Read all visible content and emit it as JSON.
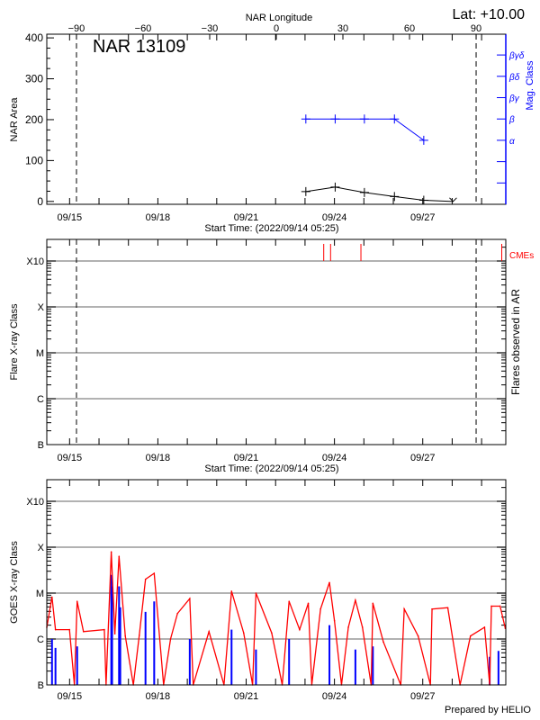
{
  "footer": "Prepared by HELIO",
  "colors": {
    "area": "#000000",
    "mag_class": "#0000ff",
    "cme": "#ff0000",
    "goes_long": "#ff0000",
    "goes_short": "#0000ff",
    "grid": "#999999"
  },
  "chart_data": [
    {
      "type": "line",
      "panel": "nar",
      "annotation": "NAR 13109",
      "latitude_label": "Lat: +10.00",
      "xlabel": "Start Time: (2022/09/14 05:25)",
      "ylabel": "NAR Area",
      "y2label": "Mag. Class",
      "top_axis_label": "NAR Longitude",
      "start_time": "2022-09-14T05:25",
      "end_time": "2022-09-29T19:50",
      "x_tick_labels": [
        "09/15",
        "09/18",
        "09/21",
        "09/24",
        "09/27"
      ],
      "top_ticks": [
        -90,
        -60,
        -30,
        0,
        30,
        60,
        90
      ],
      "limb_longitudes": [
        -90,
        90
      ],
      "y_ticks": [
        0,
        100,
        200,
        300,
        400
      ],
      "ylim": [
        -7,
        409
      ],
      "mag_class_ticks": [
        "",
        "",
        "",
        "α",
        "β",
        "βγ",
        "βδ",
        "βγδ"
      ],
      "area": [
        {
          "t": "2022-09-23T00:40",
          "v": 24
        },
        {
          "t": "2022-09-24T00:35",
          "v": 35
        },
        {
          "t": "2022-09-25T00:25",
          "v": 22
        },
        {
          "t": "2022-09-26T00:55",
          "v": 12
        },
        {
          "t": "2022-09-27T00:50",
          "v": 3
        },
        {
          "t": "2022-09-28T00:45",
          "v": 0
        }
      ],
      "mag_class": [
        {
          "t": "2022-09-23T00:40",
          "c": "β"
        },
        {
          "t": "2022-09-24T00:35",
          "c": "β"
        },
        {
          "t": "2022-09-25T00:25",
          "c": "β"
        },
        {
          "t": "2022-09-26T00:55",
          "c": "β"
        },
        {
          "t": "2022-09-27T00:50",
          "c": "α"
        }
      ]
    },
    {
      "type": "bar",
      "panel": "flares",
      "xlabel": "Start Time: (2022/09/14 05:25)",
      "ylabel": "Flare X-ray Class",
      "y2label": "Flares observed in AR",
      "legend": "CMEs",
      "x_tick_labels": [
        "09/15",
        "09/18",
        "09/21",
        "09/24",
        "09/27"
      ],
      "y_tick_labels": [
        "B",
        "C",
        "M",
        "X",
        "X10"
      ],
      "grid": true,
      "flares": [],
      "cmes": [
        "2022-09-23T15:15",
        "2022-09-23T20:50",
        "2022-09-24T21:35",
        "2022-09-29T16:25"
      ]
    },
    {
      "type": "line",
      "panel": "goes",
      "ylabel": "GOES X-ray Class",
      "x_tick_labels": [
        "09/15",
        "09/18",
        "09/21",
        "09/24",
        "09/27"
      ],
      "y_tick_labels": [
        "B",
        "C",
        "M",
        "X",
        "X10"
      ],
      "y_scale": "log",
      "y_unit": "W/m2",
      "grid": true,
      "long_channel": [
        [
          "2022-09-14T05:25",
          1.8e-06
        ],
        [
          "2022-09-14T09:40",
          8.2e-06
        ],
        [
          "2022-09-14T12:30",
          1.6e-06
        ],
        [
          "2022-09-14T23:55",
          1.6e-06
        ],
        [
          "2022-09-15T03:55",
          1e-07
        ],
        [
          "2022-09-15T06:10",
          6.6e-06
        ],
        [
          "2022-09-15T11:20",
          1.45e-06
        ],
        [
          "2022-09-16T04:20",
          1.6e-06
        ],
        [
          "2022-09-16T05:45",
          1e-07
        ],
        [
          "2022-09-16T10:00",
          7.9e-05
        ],
        [
          "2022-09-16T12:55",
          1.3e-06
        ],
        [
          "2022-09-16T16:20",
          6.3e-05
        ],
        [
          "2022-09-16T21:25",
          1.16e-06
        ],
        [
          "2022-09-17T04:00",
          1e-07
        ],
        [
          "2022-09-17T08:50",
          1.2e-06
        ],
        [
          "2022-09-17T13:55",
          2e-05
        ],
        [
          "2022-09-17T21:00",
          2.7e-05
        ],
        [
          "2022-09-18T04:40",
          1e-07
        ],
        [
          "2022-09-18T10:20",
          1e-06
        ],
        [
          "2022-09-18T16:00",
          3.6e-06
        ],
        [
          "2022-09-19T02:00",
          7.6e-06
        ],
        [
          "2022-09-19T04:50",
          1e-07
        ],
        [
          "2022-09-19T17:40",
          1.45e-06
        ],
        [
          "2022-09-20T05:55",
          1e-07
        ],
        [
          "2022-09-20T12:05",
          1.1e-05
        ],
        [
          "2022-09-20T22:00",
          1.35e-06
        ],
        [
          "2022-09-21T05:15",
          1e-07
        ],
        [
          "2022-09-21T08:00",
          1e-05
        ],
        [
          "2022-09-21T20:50",
          1.35e-06
        ],
        [
          "2022-09-22T05:25",
          1e-07
        ],
        [
          "2022-09-22T11:00",
          6.6e-06
        ],
        [
          "2022-09-22T19:35",
          1.6e-06
        ],
        [
          "2022-09-23T02:40",
          6e-06
        ],
        [
          "2022-09-23T05:30",
          1e-07
        ],
        [
          "2022-09-23T12:40",
          4.5e-06
        ],
        [
          "2022-09-23T19:55",
          1.7e-05
        ],
        [
          "2022-09-24T00:00",
          2.5e-06
        ],
        [
          "2022-09-24T05:45",
          1e-07
        ],
        [
          "2022-09-24T11:20",
          1.8e-06
        ],
        [
          "2022-09-24T17:05",
          7e-06
        ],
        [
          "2022-09-24T22:50",
          1.8e-06
        ],
        [
          "2022-09-25T05:55",
          1e-07
        ],
        [
          "2022-09-25T07:20",
          6e-06
        ],
        [
          "2022-09-25T15:55",
          8.6e-07
        ],
        [
          "2022-09-26T06:05",
          1e-07
        ],
        [
          "2022-09-26T08:55",
          4.5e-06
        ],
        [
          "2022-09-26T20:15",
          1.16e-06
        ],
        [
          "2022-09-27T06:15",
          1e-07
        ],
        [
          "2022-09-27T07:35",
          4.5e-06
        ],
        [
          "2022-09-27T20:25",
          4.8e-06
        ],
        [
          "2022-09-28T06:25",
          1e-07
        ],
        [
          "2022-09-28T14:55",
          1.16e-06
        ],
        [
          "2022-09-29T02:25",
          1.8e-06
        ],
        [
          "2022-09-29T06:35",
          1e-07
        ],
        [
          "2022-09-29T08:00",
          5.2e-06
        ],
        [
          "2022-09-29T15:05",
          5.2e-06
        ],
        [
          "2022-09-29T19:20",
          1.7e-06
        ]
      ],
      "short_channel_peaks": [
        [
          "2022-09-14T09:40",
          1e-06
        ],
        [
          "2022-09-14T12:30",
          6.4e-07
        ],
        [
          "2022-09-15T06:10",
          6.9e-07
        ],
        [
          "2022-09-16T10:00",
          2.5e-05
        ],
        [
          "2022-09-16T10:40",
          1.4e-05
        ],
        [
          "2022-09-16T16:20",
          1.4e-05
        ],
        [
          "2022-09-16T17:20",
          4.9e-06
        ],
        [
          "2022-09-17T13:55",
          3.9e-06
        ],
        [
          "2022-09-17T21:00",
          6.6e-06
        ],
        [
          "2022-09-19T02:00",
          1e-06
        ],
        [
          "2022-09-20T12:05",
          1.6e-06
        ],
        [
          "2022-09-21T08:00",
          5.9e-07
        ],
        [
          "2022-09-22T11:00",
          1e-06
        ],
        [
          "2022-09-23T19:55",
          2e-06
        ],
        [
          "2022-09-24T17:05",
          5.9e-07
        ],
        [
          "2022-09-25T07:20",
          6.9e-07
        ],
        [
          "2022-09-29T06:35",
          4.1e-07
        ],
        [
          "2022-09-29T13:45",
          5.5e-07
        ]
      ]
    }
  ]
}
